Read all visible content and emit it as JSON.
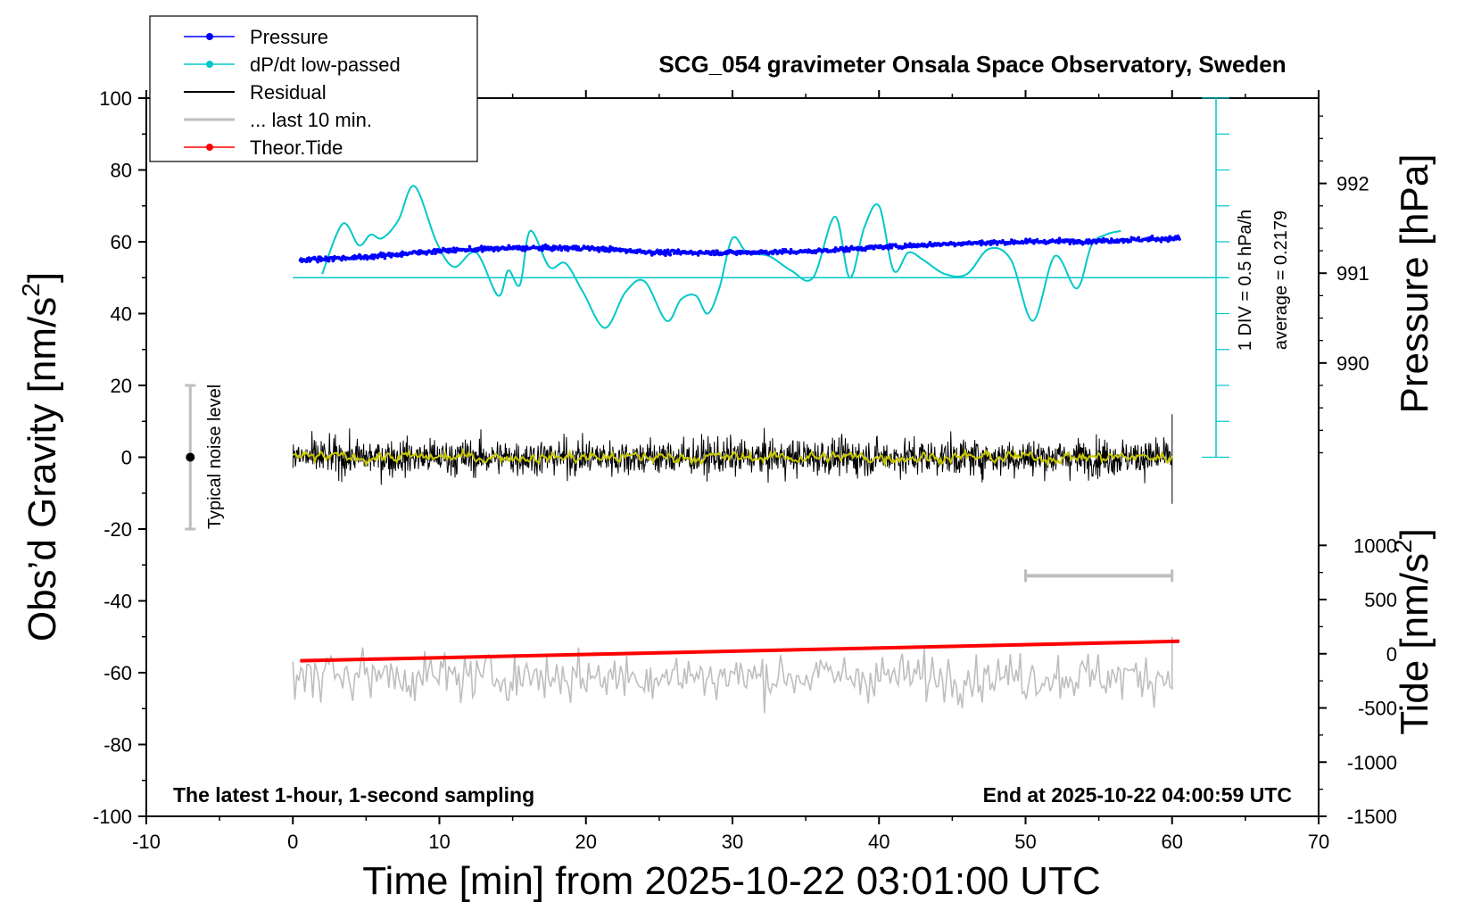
{
  "chart_data": {
    "type": "line",
    "title": "SCG_054 gravimeter Onsala Space Observatory, Sweden",
    "xlabel": "Time [min] from 2025-10-22 03:01:00 UTC",
    "ylabel_left": "Obs’d Gravity [nm/s²]",
    "ylabel_left_main": "Obs’d Gravity [nm/s",
    "ylabel_left_sup": "2",
    "ylabel_left_end": "]",
    "ylabel_right_pressure": "Pressure [hPa]",
    "ylabel_right_tide_main": "Tide [nm/s",
    "ylabel_right_tide_sup": "2",
    "ylabel_right_tide_end": "]",
    "footer_left": "The latest 1-hour, 1-second sampling",
    "footer_right": "End at 2025-10-22 04:00:59 UTC",
    "noise_label": "Typical noise level",
    "dpdt_scale_label": "1 DIV = 0.5 hPa/h",
    "dpdt_average_label": "average = 0.2179",
    "xlim": [
      -10,
      70
    ],
    "ylim_left": [
      -100,
      100
    ],
    "x_ticks": [
      "-10",
      "0",
      "10",
      "20",
      "30",
      "40",
      "50",
      "60",
      "70"
    ],
    "x_tick_values": [
      -10,
      0,
      10,
      20,
      30,
      40,
      50,
      60,
      70
    ],
    "y_ticks_left": [
      "100",
      "80",
      "60",
      "40",
      "20",
      "0",
      "-20",
      "-40",
      "-60",
      "-80",
      "-100"
    ],
    "y_tick_values_left": [
      100,
      80,
      60,
      40,
      20,
      0,
      -20,
      -40,
      -60,
      -80,
      -100
    ],
    "pressure_ticks": [
      "992",
      "991",
      "990"
    ],
    "pressure_tick_values": [
      992,
      991,
      990
    ],
    "pressure_range_hpa": [
      988.95,
      992.95
    ],
    "tide_ticks": [
      "1000",
      "500",
      "0",
      "-500",
      "-1000",
      "-1500"
    ],
    "tide_tick_values": [
      1000,
      500,
      0,
      -500,
      -1000,
      -1500
    ],
    "tide_range": [
      -1500,
      1250
    ],
    "legend": {
      "items": [
        {
          "label": "Pressure",
          "color": "#0000ff",
          "marker": true
        },
        {
          "label": "dP/dt low-passed",
          "color": "#00c8c8",
          "marker": true
        },
        {
          "label": "Residual",
          "color": "#000000",
          "marker": false
        },
        {
          "label": "... last 10 min.",
          "color": "#bebebe",
          "marker": false
        },
        {
          "label": "Theor.Tide",
          "color": "#ff0000",
          "marker": true
        }
      ]
    },
    "colors": {
      "pressure": "#0000ff",
      "dpdt": "#00c8c8",
      "residual": "#000000",
      "residual_smooth": "#c8c800",
      "last10": "#bebebe",
      "tide": "#ff0000"
    },
    "series": [
      {
        "name": "Pressure",
        "unit": "hPa",
        "x": [
          0.5,
          5,
          10,
          15,
          20,
          25,
          30,
          35,
          40,
          45,
          50,
          55,
          60.5
        ],
        "values": [
          991.15,
          991.18,
          991.25,
          991.28,
          991.28,
          991.23,
          991.23,
          991.24,
          991.29,
          991.33,
          991.35,
          991.36,
          991.39
        ]
      },
      {
        "name": "dP/dt low-passed",
        "unit": "hPa/h",
        "baseline_gravity_equiv": 50,
        "x": [
          2,
          3.4,
          4.5,
          5.3,
          6.1,
          7.2,
          8.3,
          9.8,
          11,
          12.5,
          14,
          14.7,
          15.5,
          16.2,
          17.5,
          18.6,
          19.8,
          21.3,
          22.7,
          24,
          25.5,
          26.5,
          27.5,
          28.3,
          29.1,
          30,
          31,
          32.5,
          34,
          35.5,
          37,
          38,
          39,
          40,
          41,
          42,
          43,
          44.5,
          46,
          47.5,
          49,
          50.5,
          52,
          53.5,
          54.5,
          55.5,
          56.5
        ],
        "values": [
          51,
          65,
          59,
          62,
          61,
          66,
          75.5,
          60,
          53,
          57,
          45,
          52,
          48,
          63,
          53,
          54,
          46,
          36,
          46,
          49,
          38,
          44,
          45,
          40,
          47,
          61,
          57,
          56,
          52,
          50,
          67,
          50,
          64,
          70,
          52,
          57,
          55,
          51,
          51,
          58,
          55,
          38,
          56,
          47,
          59,
          62,
          63
        ]
      },
      {
        "name": "Residual",
        "unit": "nm/s²",
        "x_range": [
          0,
          60
        ],
        "approx_mean": 0,
        "approx_min": -13,
        "approx_max": 13
      },
      {
        "name": "... last 10 min.",
        "unit": "nm/s²",
        "x_range": [
          0,
          60
        ],
        "approx_mean": -61,
        "approx_min": -75,
        "approx_max": -50
      },
      {
        "name": "Theor.Tide",
        "unit": "nm/s²",
        "x": [
          0.5,
          60.5
        ],
        "values": [
          -65,
          115
        ]
      }
    ],
    "noise_bar": {
      "x": -7,
      "center": 0,
      "min": -20,
      "max": 20
    },
    "last10_bar": {
      "x_start": 50,
      "x_end": 60,
      "y": -33
    }
  }
}
